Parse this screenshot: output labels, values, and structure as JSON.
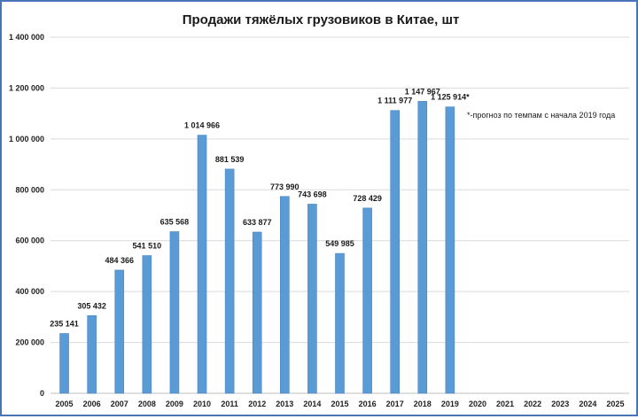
{
  "chart_data": {
    "type": "bar",
    "title": "Продажи тяжёлых грузовиков в Китае, шт",
    "xlabel": "",
    "ylabel": "",
    "categories": [
      "2005",
      "2006",
      "2007",
      "2008",
      "2009",
      "2010",
      "2011",
      "2012",
      "2013",
      "2014",
      "2015",
      "2016",
      "2017",
      "2018",
      "2019",
      "2020",
      "2021",
      "2022",
      "2023",
      "2024",
      "2025"
    ],
    "values": [
      235141,
      305432,
      484366,
      541510,
      635568,
      1014966,
      881539,
      633877,
      773990,
      743698,
      549985,
      728429,
      1111977,
      1147967,
      1125914,
      null,
      null,
      null,
      null,
      null,
      null
    ],
    "data_labels": [
      "235 141",
      "305 432",
      "484 366",
      "541 510",
      "635 568",
      "1 014 966",
      "881 539",
      "633 877",
      "773 990",
      "743 698",
      "549 985",
      "728 429",
      "1 111 977",
      "1 147 967",
      "1 125 914*",
      "",
      "",
      "",
      "",
      "",
      ""
    ],
    "ylim": [
      0,
      1400000
    ],
    "yticks": [
      0,
      200000,
      400000,
      600000,
      800000,
      1000000,
      1200000,
      1400000
    ],
    "ytick_labels": [
      "0",
      "200 000",
      "400 000",
      "600 000",
      "800 000",
      "1 000 000",
      "1 200 000",
      "1 400 000"
    ],
    "grid": true,
    "legend": "none",
    "annotation": "*-прогноз по темпам с начала 2019 года",
    "colors": {
      "bar": "#5b9bd5",
      "bar_stroke": "#4a86c0",
      "grid": "#d9d9d9",
      "border": "#4a74b8"
    }
  }
}
